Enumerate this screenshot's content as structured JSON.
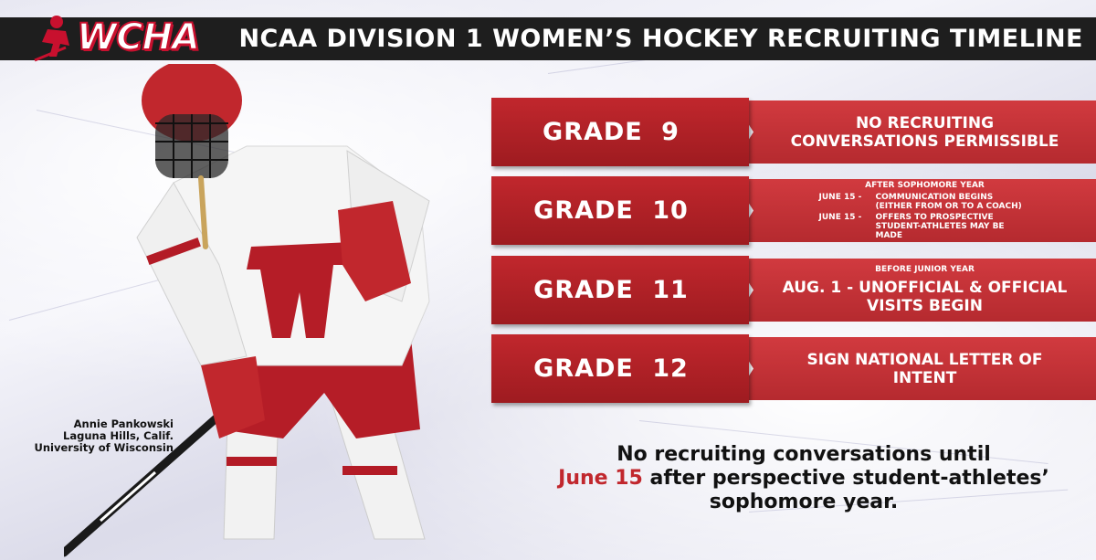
{
  "header": {
    "title": "NCAA DIVISION 1 WOMEN’S HOCKEY RECRUITING TIMELINE",
    "logo_text": "WCHA"
  },
  "caption": {
    "line1": "Annie Pankowski",
    "line2": "Laguna Hills, Calif.",
    "line3": "University of Wisconsin"
  },
  "timeline": [
    {
      "grade": "GRADE 9",
      "line1": "NO RECRUITING",
      "line2": "CONVERSATIONS PERMISSIBLE"
    },
    {
      "grade": "GRADE 10",
      "heading": "AFTER SOPHOMORE YEAR",
      "items": [
        {
          "date": "JUNE 15  -",
          "text1": "COMMUNICATION BEGINS",
          "text2": "(EITHER FROM OR TO A COACH)"
        },
        {
          "date": "JUNE 15   -",
          "text1": "OFFERS TO PROSPECTIVE",
          "text2": "STUDENT-ATHLETES MAY BE MADE"
        }
      ]
    },
    {
      "grade": "GRADE 11",
      "heading": "BEFORE JUNIOR YEAR",
      "line1": "AUG. 1 - UNOFFICIAL & OFFICIAL",
      "line2": "VISITS BEGIN"
    },
    {
      "grade": "GRADE 12",
      "line1": "SIGN NATIONAL LETTER OF",
      "line2": "INTENT"
    }
  ],
  "footer": {
    "line1": "No recruiting conversations until",
    "highlight": "June 15",
    "line2_rest": " after perspective student-athletes’",
    "line3": "sophomore year."
  },
  "colors": {
    "header_bg": "#1e1e1e",
    "accent_red": "#c1272d",
    "info_red": "#c4343a"
  }
}
